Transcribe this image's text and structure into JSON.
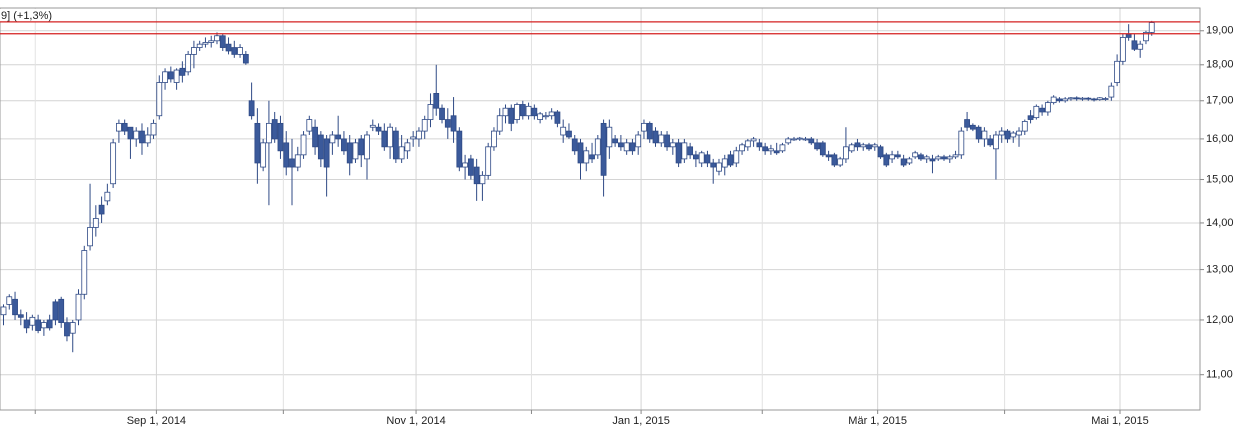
{
  "chart_data": {
    "type": "candlestick",
    "title": "9] (+1,3%)",
    "log_scale": true,
    "grid": true,
    "up_color": "#ffffff",
    "down_color": "#3b5a9b",
    "line_color": "#2f4a86",
    "hlines": [
      19.27,
      18.91
    ],
    "hline_color": "#d42020",
    "ylim": [
      10.4,
      19.7
    ],
    "yticks": [
      {
        "value": 11,
        "label": "11,00"
      },
      {
        "value": 12,
        "label": "12,00"
      },
      {
        "value": 13,
        "label": "13,00"
      },
      {
        "value": 14,
        "label": "14,00"
      },
      {
        "value": 15,
        "label": "15,00"
      },
      {
        "value": 16,
        "label": "16,00"
      },
      {
        "value": 17,
        "label": "17,00"
      },
      {
        "value": 18,
        "label": "18,00"
      },
      {
        "value": 19,
        "label": "19,00"
      }
    ],
    "xticks": [
      {
        "value": "2014-09-01",
        "label": "Sep 1, 2014"
      },
      {
        "value": "2014-11-01",
        "label": "Nov 1, 2014"
      },
      {
        "value": "2015-01-01",
        "label": "Jan 1, 2015"
      },
      {
        "value": "2015-03-01",
        "label": "Mär 1, 2015"
      },
      {
        "value": "2015-05-01",
        "label": "Mai 1, 2015"
      }
    ],
    "xminorticks": [
      "2014-08-01",
      "2014-10-01",
      "2014-12-01",
      "2015-02-01",
      "2015-04-01"
    ],
    "categories": [
      "2014-07-24",
      "2014-07-25",
      "2014-07-28",
      "2014-07-29",
      "2014-07-30",
      "2014-07-31",
      "2014-08-01",
      "2014-08-04",
      "2014-08-05",
      "2014-08-06",
      "2014-08-07",
      "2014-08-08",
      "2014-08-11",
      "2014-08-12",
      "2014-08-13",
      "2014-08-14",
      "2014-08-15",
      "2014-08-18",
      "2014-08-19",
      "2014-08-20",
      "2014-08-21",
      "2014-08-22",
      "2014-08-25",
      "2014-08-26",
      "2014-08-27",
      "2014-08-28",
      "2014-08-29",
      "2014-09-01",
      "2014-09-02",
      "2014-09-03",
      "2014-09-04",
      "2014-09-05",
      "2014-09-08",
      "2014-09-09",
      "2014-09-10",
      "2014-09-11",
      "2014-09-12",
      "2014-09-15",
      "2014-09-16",
      "2014-09-17",
      "2014-09-18",
      "2014-09-19",
      "2014-09-22",
      "2014-09-23",
      "2014-09-24",
      "2014-09-25",
      "2014-09-26",
      "2014-09-29",
      "2014-09-30",
      "2014-10-01",
      "2014-10-02",
      "2014-10-03",
      "2014-10-06",
      "2014-10-07",
      "2014-10-08",
      "2014-10-09",
      "2014-10-10",
      "2014-10-13",
      "2014-10-14",
      "2014-10-15",
      "2014-10-16",
      "2014-10-17",
      "2014-10-20",
      "2014-10-21",
      "2014-10-22",
      "2014-10-23",
      "2014-10-24",
      "2014-10-27",
      "2014-10-28",
      "2014-10-29",
      "2014-10-30",
      "2014-10-31",
      "2014-11-03",
      "2014-11-04",
      "2014-11-05",
      "2014-11-06",
      "2014-11-07",
      "2014-11-10",
      "2014-11-11",
      "2014-11-12",
      "2014-11-13",
      "2014-11-14",
      "2014-11-17",
      "2014-11-18",
      "2014-11-19",
      "2014-11-20",
      "2014-11-21",
      "2014-11-24",
      "2014-11-25",
      "2014-11-26",
      "2014-11-27",
      "2014-11-28",
      "2014-12-01",
      "2014-12-02",
      "2014-12-03",
      "2014-12-04",
      "2014-12-05",
      "2014-12-08",
      "2014-12-09",
      "2014-12-10",
      "2014-12-11",
      "2014-12-12",
      "2014-12-15",
      "2014-12-16",
      "2014-12-17",
      "2014-12-18",
      "2014-12-19",
      "2014-12-22",
      "2014-12-23",
      "2014-12-29",
      "2014-12-30",
      "2015-01-02",
      "2015-01-05",
      "2015-01-06",
      "2015-01-07",
      "2015-01-08",
      "2015-01-09",
      "2015-01-12",
      "2015-01-13",
      "2015-01-14",
      "2015-01-15",
      "2015-01-16",
      "2015-01-19",
      "2015-01-20",
      "2015-01-21",
      "2015-01-22",
      "2015-01-23",
      "2015-01-26",
      "2015-01-27",
      "2015-01-28",
      "2015-01-29",
      "2015-01-30",
      "2015-02-02",
      "2015-02-03",
      "2015-02-04",
      "2015-02-05",
      "2015-02-06",
      "2015-02-09",
      "2015-02-10",
      "2015-02-11",
      "2015-02-12",
      "2015-02-13",
      "2015-02-16",
      "2015-02-17",
      "2015-02-18",
      "2015-02-19",
      "2015-02-20",
      "2015-02-23",
      "2015-02-24",
      "2015-02-25",
      "2015-02-26",
      "2015-02-27",
      "2015-03-02",
      "2015-03-03",
      "2015-03-04",
      "2015-03-05",
      "2015-03-06",
      "2015-03-09",
      "2015-03-10",
      "2015-03-11",
      "2015-03-12",
      "2015-03-13",
      "2015-03-16",
      "2015-03-17",
      "2015-03-18",
      "2015-03-19",
      "2015-03-20",
      "2015-03-23",
      "2015-03-24",
      "2015-03-25",
      "2015-03-26",
      "2015-03-27",
      "2015-03-30",
      "2015-03-31",
      "2015-04-01",
      "2015-04-02",
      "2015-04-07",
      "2015-04-08",
      "2015-04-09",
      "2015-04-10",
      "2015-04-13",
      "2015-04-14",
      "2015-04-15",
      "2015-04-16",
      "2015-04-17",
      "2015-04-20",
      "2015-04-21",
      "2015-04-22",
      "2015-04-23",
      "2015-04-24",
      "2015-04-27",
      "2015-04-28",
      "2015-04-29",
      "2015-04-30",
      "2015-05-04",
      "2015-05-05",
      "2015-05-06",
      "2015-05-07",
      "2015-05-08",
      "2015-05-11"
    ],
    "open": [
      12.1,
      12.3,
      12.4,
      12.1,
      12.0,
      11.9,
      12.0,
      11.85,
      12.0,
      12.35,
      12.4,
      11.95,
      11.75,
      12.0,
      12.5,
      13.5,
      13.9,
      14.4,
      14.5,
      14.9,
      16.2,
      16.4,
      16.3,
      16.0,
      16.2,
      15.9,
      16.1,
      16.6,
      17.5,
      17.8,
      17.5,
      17.9,
      17.8,
      18.3,
      18.5,
      18.6,
      18.65,
      18.7,
      18.85,
      18.6,
      18.5,
      18.3,
      18.3,
      17.0,
      16.4,
      15.3,
      15.9,
      16.5,
      16.4,
      15.9,
      15.5,
      15.3,
      15.6,
      16.2,
      16.3,
      16.1,
      16.0,
      15.9,
      16.1,
      16.0,
      15.9,
      15.5,
      16.0,
      15.5,
      16.3,
      16.3,
      16.2,
      15.8,
      16.2,
      15.5,
      15.7,
      16.0,
      16.0,
      16.2,
      16.5,
      17.2,
      16.8,
      16.5,
      16.6,
      16.2,
      15.3,
      15.5,
      15.3,
      14.9,
      15.1,
      15.8,
      16.2,
      16.6,
      16.8,
      16.5,
      16.9,
      16.6,
      16.8,
      16.5,
      16.6,
      16.6,
      16.7,
      16.1,
      16.2,
      16.0,
      15.9,
      15.4,
      15.6,
      15.6,
      16.4,
      15.8,
      16.0,
      15.9,
      15.7,
      15.9,
      15.8,
      16.2,
      16.4,
      16.2,
      15.9,
      16.1,
      15.8,
      15.9,
      15.5,
      15.8,
      15.6,
      15.4,
      15.6,
      15.4,
      15.2,
      15.3,
      15.6,
      15.4,
      15.7,
      15.8,
      15.95,
      15.9,
      15.8,
      15.7,
      15.7,
      15.7,
      15.9,
      16.0,
      16.0,
      16.0,
      16.0,
      15.9,
      15.9,
      15.6,
      15.6,
      15.35,
      15.5,
      15.7,
      15.9,
      15.8,
      15.85,
      15.8,
      15.8,
      15.6,
      15.5,
      15.6,
      15.5,
      15.4,
      15.55,
      15.6,
      15.5,
      15.5,
      15.5,
      15.55,
      15.5,
      15.55,
      15.6,
      16.5,
      16.35,
      16.3,
      16.0,
      16.0,
      15.75,
      16.1,
      16.2,
      16.05,
      16.1,
      16.2,
      16.6,
      16.55,
      16.8,
      16.7,
      16.95,
      17.05,
      17.0,
      17.05,
      17.08,
      17.05,
      17.07,
      17.05,
      17.03,
      17.05,
      17.1,
      17.5,
      18.1,
      18.9,
      18.7,
      18.45,
      18.7,
      18.95
    ],
    "high": [
      12.3,
      12.5,
      12.55,
      12.2,
      12.15,
      12.1,
      12.1,
      12.0,
      12.1,
      12.4,
      12.45,
      12.05,
      12.0,
      12.6,
      13.5,
      14.9,
      14.4,
      14.6,
      14.9,
      16.0,
      16.5,
      16.5,
      16.3,
      16.3,
      16.4,
      16.3,
      16.5,
      17.7,
      17.9,
      17.95,
      17.9,
      18.1,
      18.4,
      18.7,
      18.7,
      18.8,
      18.85,
      18.95,
      18.9,
      18.8,
      18.7,
      18.6,
      18.4,
      17.5,
      16.8,
      16.0,
      17.0,
      16.7,
      16.6,
      16.2,
      16.0,
      15.8,
      16.2,
      16.6,
      16.5,
      16.2,
      16.1,
      16.2,
      16.6,
      16.2,
      16.1,
      16.0,
      16.1,
      16.2,
      16.5,
      16.4,
      16.4,
      16.4,
      16.3,
      16.1,
      16.0,
      16.2,
      16.3,
      16.6,
      17.2,
      18.0,
      16.9,
      16.8,
      17.1,
      16.3,
      15.6,
      15.6,
      15.5,
      15.2,
      15.9,
      16.3,
      16.8,
      16.9,
      16.9,
      16.95,
      17.0,
      16.95,
      16.9,
      16.7,
      16.7,
      16.8,
      16.75,
      16.5,
      16.4,
      16.1,
      16.0,
      15.8,
      15.9,
      16.1,
      16.5,
      16.5,
      16.1,
      16.1,
      16.0,
      16.0,
      16.2,
      16.5,
      16.45,
      16.3,
      16.2,
      16.2,
      16.0,
      16.0,
      16.0,
      15.9,
      15.7,
      15.7,
      15.7,
      15.5,
      15.5,
      15.6,
      15.7,
      15.8,
      15.9,
      16.0,
      16.05,
      16.0,
      15.9,
      15.85,
      15.9,
      15.9,
      16.05,
      16.05,
      16.05,
      16.05,
      16.05,
      16.0,
      15.95,
      15.7,
      15.65,
      15.55,
      16.3,
      15.9,
      16.0,
      15.9,
      15.9,
      15.9,
      15.85,
      15.65,
      15.7,
      15.7,
      15.6,
      15.55,
      15.7,
      15.65,
      15.6,
      15.6,
      15.6,
      15.6,
      15.6,
      15.7,
      16.3,
      16.7,
      16.4,
      16.35,
      16.3,
      16.1,
      16.2,
      16.3,
      16.25,
      16.2,
      16.3,
      16.5,
      16.75,
      16.9,
      16.9,
      17.0,
      17.15,
      17.1,
      17.1,
      17.1,
      17.12,
      17.1,
      17.1,
      17.08,
      17.1,
      17.1,
      17.5,
      18.3,
      18.9,
      19.2,
      18.9,
      18.7,
      19.0,
      19.3
    ],
    "low": [
      11.9,
      12.2,
      12.0,
      11.9,
      11.75,
      11.8,
      11.75,
      11.7,
      11.8,
      11.9,
      11.85,
      11.6,
      11.4,
      11.9,
      12.4,
      13.4,
      13.7,
      14.0,
      14.4,
      14.8,
      15.9,
      16.1,
      15.5,
      15.8,
      15.6,
      15.8,
      16.0,
      16.5,
      17.3,
      17.5,
      17.3,
      17.5,
      17.7,
      17.9,
      18.4,
      18.5,
      18.5,
      18.6,
      18.4,
      18.3,
      18.2,
      18.2,
      18.0,
      16.5,
      14.9,
      15.2,
      14.4,
      15.9,
      15.5,
      15.1,
      14.4,
      15.2,
      15.5,
      16.1,
      15.6,
      15.3,
      14.6,
      15.6,
      15.8,
      15.6,
      15.1,
      15.4,
      15.3,
      15.0,
      16.2,
      16.1,
      15.7,
      15.5,
      15.4,
      15.4,
      15.5,
      15.8,
      15.8,
      16.0,
      16.3,
      16.6,
      16.4,
      16.0,
      15.9,
      15.2,
      15.0,
      15.0,
      14.5,
      14.5,
      15.0,
      15.7,
      16.1,
      16.4,
      16.2,
      16.4,
      16.5,
      16.5,
      16.5,
      16.4,
      16.5,
      16.5,
      16.3,
      15.9,
      16.0,
      15.6,
      15.0,
      15.2,
      15.4,
      15.5,
      14.6,
      15.5,
      15.8,
      15.7,
      15.6,
      15.6,
      15.6,
      16.0,
      15.9,
      15.8,
      15.8,
      15.7,
      15.6,
      15.3,
      15.4,
      15.5,
      15.3,
      15.3,
      15.3,
      14.9,
      15.1,
      15.1,
      15.3,
      15.3,
      15.6,
      15.7,
      15.8,
      15.7,
      15.6,
      15.6,
      15.6,
      15.65,
      15.85,
      15.95,
      15.95,
      15.95,
      15.85,
      15.7,
      15.55,
      15.45,
      15.3,
      15.3,
      15.4,
      15.65,
      15.7,
      15.7,
      15.7,
      15.7,
      15.5,
      15.3,
      15.4,
      15.5,
      15.3,
      15.35,
      15.5,
      15.45,
      15.4,
      15.15,
      15.45,
      15.45,
      15.4,
      15.5,
      15.5,
      16.2,
      16.2,
      15.9,
      15.8,
      15.8,
      15.0,
      15.9,
      15.9,
      15.9,
      15.8,
      16.1,
      16.4,
      16.5,
      16.6,
      16.6,
      16.9,
      16.95,
      16.95,
      17.0,
      17.0,
      17.0,
      17.0,
      16.98,
      17.0,
      17.0,
      17.0,
      17.4,
      18.0,
      18.7,
      18.4,
      18.2,
      18.6,
      18.85
    ],
    "close": [
      12.25,
      12.45,
      12.1,
      12.05,
      11.85,
      12.05,
      11.8,
      11.95,
      11.85,
      12.0,
      11.95,
      11.7,
      11.95,
      12.5,
      13.4,
      13.9,
      14.1,
      14.2,
      14.7,
      15.9,
      16.4,
      16.2,
      16.0,
      16.2,
      15.9,
      16.1,
      16.4,
      17.5,
      17.8,
      17.6,
      17.85,
      17.7,
      18.3,
      18.5,
      18.6,
      18.65,
      18.7,
      18.85,
      18.5,
      18.4,
      18.3,
      18.5,
      18.05,
      16.6,
      15.4,
      15.9,
      16.4,
      16.0,
      15.7,
      15.3,
      15.3,
      15.6,
      16.1,
      16.5,
      15.8,
      15.5,
      15.3,
      16.1,
      16.0,
      15.7,
      15.4,
      15.9,
      15.6,
      16.1,
      16.35,
      16.2,
      15.8,
      16.3,
      15.5,
      15.8,
      15.9,
      16.05,
      16.2,
      16.5,
      16.9,
      16.8,
      16.5,
      16.3,
      16.2,
      15.3,
      15.4,
      15.1,
      14.9,
      15.1,
      15.8,
      16.2,
      16.6,
      16.8,
      16.4,
      16.9,
      16.6,
      16.85,
      16.6,
      16.65,
      16.6,
      16.7,
      16.4,
      16.3,
      16.05,
      15.7,
      15.4,
      15.7,
      15.5,
      16.0,
      15.1,
      16.3,
      15.9,
      15.8,
      15.9,
      15.7,
      16.1,
      16.4,
      16.0,
      15.9,
      16.1,
      15.8,
      15.9,
      15.4,
      15.9,
      15.6,
      15.5,
      15.65,
      15.4,
      15.3,
      15.4,
      15.5,
      15.35,
      15.7,
      15.85,
      15.95,
      16.0,
      15.8,
      15.7,
      15.75,
      15.65,
      15.85,
      16.0,
      16.0,
      16.02,
      16.0,
      15.9,
      15.75,
      15.6,
      15.55,
      15.35,
      15.5,
      15.8,
      15.85,
      15.8,
      15.85,
      15.75,
      15.85,
      15.55,
      15.35,
      15.6,
      15.55,
      15.35,
      15.5,
      15.65,
      15.5,
      15.55,
      15.45,
      15.55,
      15.5,
      15.55,
      15.6,
      16.2,
      16.3,
      16.25,
      16.0,
      16.2,
      15.85,
      16.1,
      16.2,
      16.0,
      16.15,
      16.2,
      16.45,
      16.5,
      16.85,
      16.7,
      16.95,
      17.1,
      17.0,
      17.05,
      17.08,
      17.05,
      17.07,
      17.06,
      17.03,
      17.08,
      17.06,
      17.4,
      18.1,
      18.8,
      18.8,
      18.45,
      18.6,
      18.95,
      19.25
    ]
  }
}
